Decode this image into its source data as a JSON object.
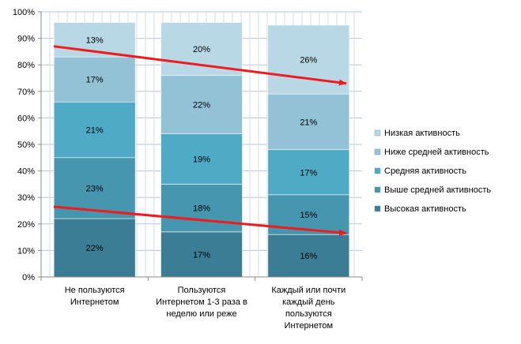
{
  "chart_data": {
    "type": "bar",
    "stacked": true,
    "categories": [
      [
        "Не пользуются",
        "Интернетом"
      ],
      [
        "Пользуются",
        "Интернетом  1-3 раза в",
        "неделю или реже"
      ],
      [
        "Каждый или почти",
        "каждый день",
        "пользуются",
        "Интернетом"
      ]
    ],
    "series": [
      {
        "name": "Высокая активность",
        "values": [
          22,
          17,
          16
        ],
        "labels": [
          "22%",
          "17%",
          "16%"
        ],
        "color": "#3a7d95"
      },
      {
        "name": "Выше средней активность",
        "values": [
          23,
          18,
          15
        ],
        "labels": [
          "23%",
          "18%",
          "15%"
        ],
        "color": "#4596ae"
      },
      {
        "name": "Средняя активность",
        "values": [
          21,
          19,
          17
        ],
        "labels": [
          "21%",
          "19%",
          "17%"
        ],
        "color": "#4faac6"
      },
      {
        "name": "Ниже средней активность",
        "values": [
          17,
          22,
          21
        ],
        "labels": [
          "17%",
          "22%",
          "21%"
        ],
        "color": "#93c2d6"
      },
      {
        "name": "Низкая активность",
        "values": [
          13,
          20,
          26
        ],
        "labels": [
          "13%",
          "20%",
          "26%"
        ],
        "color": "#b8d8e6"
      }
    ],
    "y_ticks": [
      "0%",
      "10%",
      "20%",
      "30%",
      "40%",
      "50%",
      "60%",
      "70%",
      "80%",
      "90%",
      "100%"
    ],
    "ylim": [
      0,
      100
    ],
    "grid": true,
    "legend": "right",
    "annotations": [
      {
        "type": "arrow",
        "color": "#ee1c1c",
        "from": [
          0,
          87
        ],
        "to": [
          3,
          73
        ]
      },
      {
        "type": "arrow",
        "color": "#ee1c1c",
        "from": [
          0,
          26.5
        ],
        "to": [
          3,
          16.5
        ]
      }
    ]
  }
}
